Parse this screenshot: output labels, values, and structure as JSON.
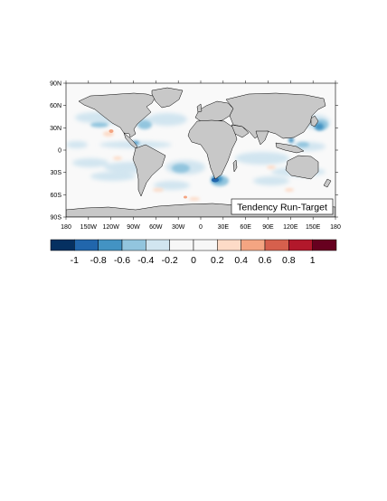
{
  "map": {
    "annotation": "Tendency Run-Target",
    "projection": "cylindrical-equidistant",
    "land_color": "#c8c8c8",
    "ocean_background": "#f9f9f9",
    "coastline_color": "#000000",
    "lon_ticks": [
      "180",
      "150W",
      "120W",
      "90W",
      "60W",
      "30W",
      "0",
      "30E",
      "60E",
      "90E",
      "120E",
      "150E",
      "180"
    ],
    "lat_ticks": [
      "90N",
      "60N",
      "30N",
      "0",
      "30S",
      "60S",
      "90S"
    ]
  },
  "colorbar": {
    "colors": [
      "#053061",
      "#2166ac",
      "#4393c3",
      "#92c5de",
      "#d1e5f0",
      "#f7f7f7",
      "#f7f7f7",
      "#fddbc7",
      "#f4a582",
      "#d6604d",
      "#b2182b",
      "#67001f"
    ],
    "labels": [
      "-1",
      "-0.8",
      "-0.6",
      "-0.4",
      "-0.2",
      "0",
      "0.2",
      "0.4",
      "0.6",
      "0.8",
      "1"
    ]
  }
}
